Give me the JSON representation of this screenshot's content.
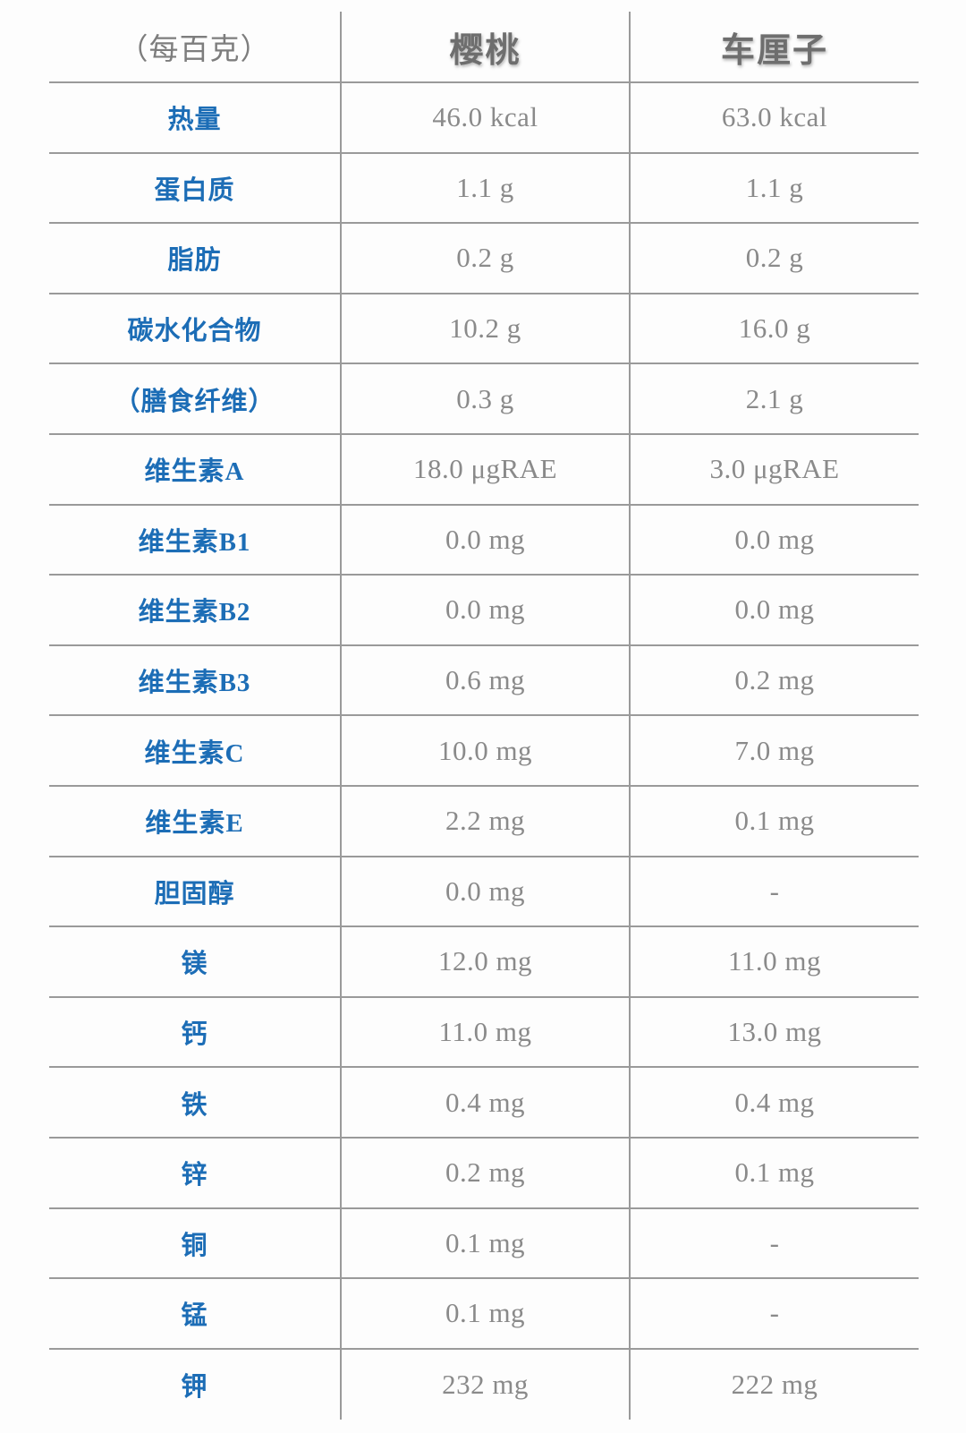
{
  "chart_data": {
    "type": "table",
    "header": {
      "col0": "（每百克）",
      "col1": "樱桃",
      "col2": "车厘子"
    },
    "rows": [
      {
        "label": "热量",
        "col1": "46.0 kcal",
        "col2": "63.0 kcal"
      },
      {
        "label": "蛋白质",
        "col1": "1.1 g",
        "col2": "1.1 g"
      },
      {
        "label": "脂肪",
        "col1": "0.2 g",
        "col2": "0.2 g"
      },
      {
        "label": "碳水化合物",
        "col1": "10.2 g",
        "col2": "16.0 g"
      },
      {
        "label": "（膳食纤维）",
        "col1": "0.3 g",
        "col2": "2.1 g"
      },
      {
        "label": "维生素A",
        "col1": "18.0 μgRAE",
        "col2": "3.0 μgRAE"
      },
      {
        "label": "维生素B1",
        "col1": "0.0 mg",
        "col2": "0.0 mg"
      },
      {
        "label": "维生素B2",
        "col1": "0.0 mg",
        "col2": "0.0 mg"
      },
      {
        "label": "维生素B3",
        "col1": "0.6 mg",
        "col2": "0.2 mg"
      },
      {
        "label": "维生素C",
        "col1": "10.0 mg",
        "col2": "7.0 mg"
      },
      {
        "label": "维生素E",
        "col1": "2.2 mg",
        "col2": "0.1 mg"
      },
      {
        "label": "胆固醇",
        "col1": "0.0 mg",
        "col2": "-"
      },
      {
        "label": "镁",
        "col1": "12.0 mg",
        "col2": "11.0 mg"
      },
      {
        "label": "钙",
        "col1": "11.0 mg",
        "col2": "13.0 mg"
      },
      {
        "label": "铁",
        "col1": "0.4 mg",
        "col2": "0.4 mg"
      },
      {
        "label": "锌",
        "col1": "0.2 mg",
        "col2": "0.1 mg"
      },
      {
        "label": "铜",
        "col1": "0.1 mg",
        "col2": "-"
      },
      {
        "label": "锰",
        "col1": "0.1 mg",
        "col2": "-"
      },
      {
        "label": "钾",
        "col1": "232 mg",
        "col2": "222 mg"
      }
    ],
    "colors": {
      "row_label_blue": "#1c6db6",
      "value_gray": "#8a8a8a",
      "header_gray": "#6e6e6e",
      "grid_line_gray": "#9a9a9a"
    },
    "layout": {
      "grid": "horizontal rules between all rows; two internal vertical rules; no outer border"
    }
  }
}
